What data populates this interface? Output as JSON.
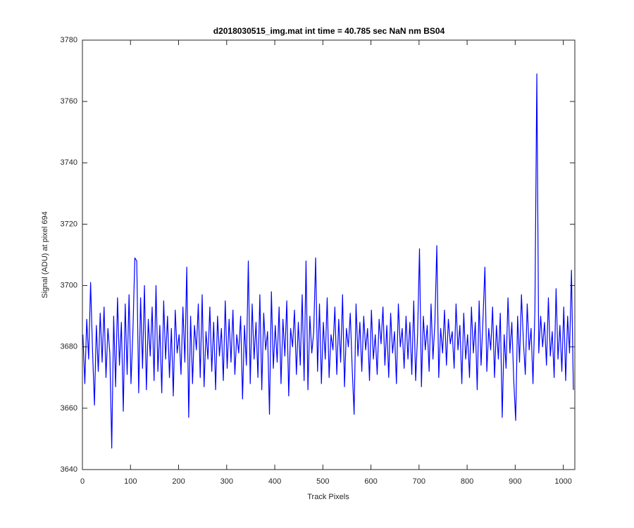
{
  "chart_data": {
    "type": "line",
    "title": "d2018030515_img.mat int time = 40.785 sec  NaN nm BS04",
    "x_label": "Track Pixels",
    "y_label": "Signal (ADU) at pixel 694",
    "xlim": [
      0,
      1024
    ],
    "ylim": [
      3640,
      3780
    ],
    "xticks": [
      0,
      100,
      200,
      300,
      400,
      500,
      600,
      700,
      800,
      900,
      1000
    ],
    "yticks": [
      3640,
      3660,
      3680,
      3700,
      3720,
      3740,
      3760,
      3780
    ],
    "grid": false,
    "x": [
      1,
      5,
      9,
      13,
      17,
      21,
      25,
      29,
      33,
      37,
      41,
      45,
      49,
      53,
      57,
      61,
      65,
      69,
      73,
      77,
      81,
      85,
      89,
      93,
      97,
      101,
      105,
      109,
      113,
      117,
      121,
      125,
      129,
      133,
      137,
      141,
      145,
      149,
      153,
      157,
      161,
      165,
      169,
      173,
      177,
      181,
      185,
      189,
      193,
      197,
      201,
      205,
      209,
      213,
      217,
      221,
      225,
      229,
      233,
      237,
      241,
      245,
      249,
      253,
      257,
      261,
      265,
      269,
      273,
      277,
      281,
      285,
      289,
      293,
      297,
      301,
      305,
      309,
      313,
      317,
      321,
      325,
      329,
      333,
      337,
      341,
      345,
      349,
      353,
      357,
      361,
      365,
      369,
      373,
      377,
      381,
      385,
      389,
      393,
      397,
      401,
      405,
      409,
      413,
      417,
      421,
      425,
      429,
      433,
      437,
      441,
      445,
      449,
      453,
      457,
      461,
      465,
      469,
      473,
      477,
      481,
      485,
      489,
      493,
      497,
      501,
      505,
      509,
      513,
      517,
      521,
      525,
      529,
      533,
      537,
      541,
      545,
      549,
      553,
      557,
      561,
      565,
      569,
      573,
      577,
      581,
      585,
      589,
      593,
      597,
      601,
      605,
      609,
      613,
      617,
      621,
      625,
      629,
      633,
      637,
      641,
      645,
      649,
      653,
      657,
      661,
      665,
      669,
      673,
      677,
      681,
      685,
      689,
      693,
      697,
      701,
      705,
      709,
      713,
      717,
      721,
      725,
      729,
      733,
      737,
      741,
      745,
      749,
      753,
      757,
      761,
      765,
      769,
      773,
      777,
      781,
      785,
      789,
      793,
      797,
      801,
      805,
      809,
      813,
      817,
      821,
      825,
      829,
      833,
      837,
      841,
      845,
      849,
      853,
      857,
      861,
      865,
      869,
      873,
      877,
      881,
      885,
      889,
      893,
      897,
      901,
      905,
      909,
      913,
      917,
      921,
      925,
      929,
      933,
      937,
      941,
      945,
      949,
      953,
      957,
      961,
      965,
      969,
      973,
      977,
      981,
      985,
      989,
      993,
      997,
      1001,
      1005,
      1009,
      1013,
      1017,
      1021
    ],
    "series": [
      {
        "name": "signal",
        "color": "#0000ff",
        "values": [
          3684,
          3668,
          3689,
          3676,
          3701,
          3679,
          3661,
          3687,
          3672,
          3691,
          3675,
          3693,
          3670,
          3686,
          3678,
          3647,
          3690,
          3667,
          3696,
          3674,
          3688,
          3659,
          3694,
          3671,
          3697,
          3668,
          3685,
          3709,
          3708,
          3665,
          3696,
          3673,
          3700,
          3666,
          3689,
          3677,
          3693,
          3669,
          3700,
          3672,
          3687,
          3665,
          3695,
          3676,
          3690,
          3670,
          3686,
          3664,
          3692,
          3678,
          3684,
          3671,
          3693,
          3675,
          3706,
          3657,
          3690,
          3668,
          3687,
          3679,
          3694,
          3670,
          3697,
          3667,
          3685,
          3676,
          3693,
          3672,
          3688,
          3666,
          3690,
          3677,
          3686,
          3669,
          3695,
          3673,
          3689,
          3675,
          3692,
          3671,
          3684,
          3678,
          3690,
          3663,
          3687,
          3674,
          3708,
          3668,
          3694,
          3676,
          3688,
          3670,
          3697,
          3666,
          3691,
          3679,
          3685,
          3658,
          3698,
          3673,
          3687,
          3675,
          3693,
          3668,
          3689,
          3677,
          3695,
          3664,
          3686,
          3680,
          3692,
          3671,
          3688,
          3674,
          3697,
          3669,
          3708,
          3666,
          3690,
          3678,
          3685,
          3709,
          3672,
          3694,
          3668,
          3688,
          3676,
          3696,
          3670,
          3684,
          3679,
          3693,
          3671,
          3689,
          3675,
          3697,
          3667,
          3686,
          3680,
          3691,
          3673,
          3658,
          3694,
          3677,
          3688,
          3672,
          3690,
          3679,
          3686,
          3669,
          3692,
          3676,
          3684,
          3671,
          3689,
          3681,
          3693,
          3674,
          3687,
          3670,
          3691,
          3678,
          3685,
          3668,
          3694,
          3680,
          3686,
          3673,
          3690,
          3676,
          3688,
          3671,
          3695,
          3669,
          3684,
          3712,
          3667,
          3690,
          3679,
          3687,
          3672,
          3694,
          3676,
          3688,
          3713,
          3670,
          3686,
          3678,
          3692,
          3674,
          3689,
          3681,
          3685,
          3673,
          3694,
          3679,
          3687,
          3668,
          3691,
          3676,
          3684,
          3670,
          3693,
          3678,
          3688,
          3666,
          3695,
          3674,
          3689,
          3706,
          3672,
          3686,
          3679,
          3693,
          3670,
          3687,
          3676,
          3691,
          3657,
          3684,
          3673,
          3696,
          3678,
          3688,
          3669,
          3656,
          3690,
          3675,
          3697,
          3682,
          3671,
          3694,
          3679,
          3686,
          3668,
          3692,
          3769,
          3678,
          3690,
          3680,
          3688,
          3674,
          3696,
          3677,
          3685,
          3670,
          3699,
          3676,
          3687,
          3672,
          3693,
          3669,
          3690,
          3678,
          3705,
          3666
        ]
      }
    ]
  }
}
